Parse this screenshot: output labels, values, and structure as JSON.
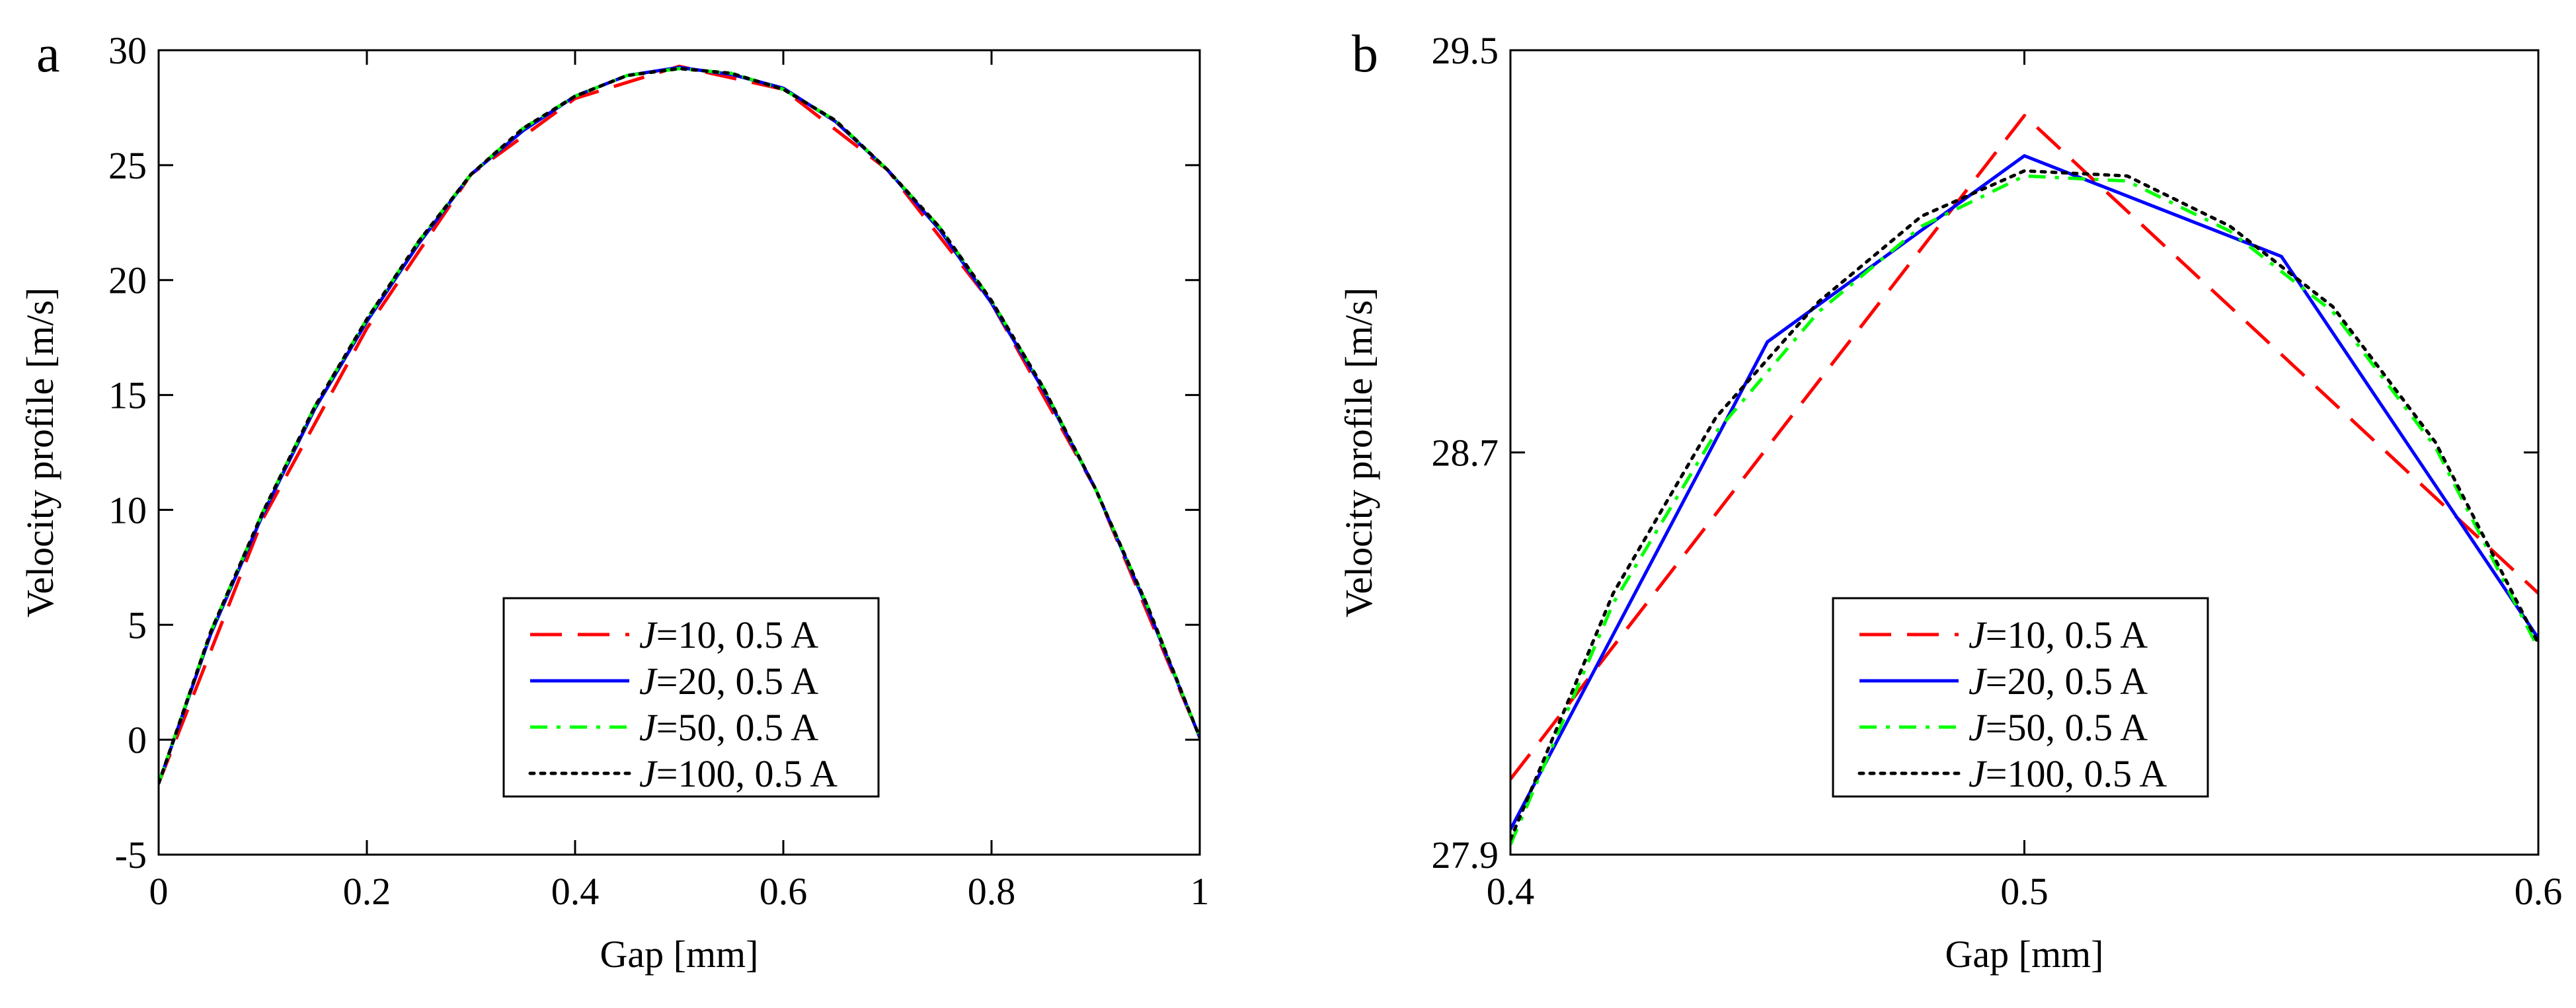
{
  "chart_data": [
    {
      "type": "line",
      "panel_label": "a",
      "xlabel": "Gap [mm]",
      "ylabel": "Velocity profile [m/s]",
      "xlim": [
        0,
        1
      ],
      "ylim": [
        -5,
        30
      ],
      "xticks": [
        0,
        0.2,
        0.4,
        0.6,
        0.8,
        1
      ],
      "xtick_labels": [
        "0",
        "0.2",
        "0.4",
        "0.6",
        "0.8",
        "1"
      ],
      "yticks": [
        -5,
        0,
        5,
        10,
        15,
        20,
        25,
        30
      ],
      "ytick_labels": [
        "-5",
        "0",
        "5",
        "10",
        "15",
        "20",
        "25",
        "30"
      ],
      "grid": false,
      "legend_position": "bottom-center",
      "series": [
        {
          "name": "J=10, 0.5 A",
          "legend_italic": "J",
          "legend_rest": "=10, 0.5 A",
          "color": "#ff0000",
          "dash": "dashed",
          "x": [
            0,
            0.1,
            0.2,
            0.3,
            0.4,
            0.5,
            0.6,
            0.7,
            0.8,
            0.9,
            1.0
          ],
          "y": [
            -1.9,
            9.6,
            17.9,
            24.6,
            27.9,
            29.3,
            28.3,
            24.8,
            19.0,
            10.9,
            0.1
          ]
        },
        {
          "name": "J=20, 0.5 A",
          "legend_italic": "J",
          "legend_rest": "=20, 0.5 A",
          "color": "#0000ff",
          "dash": "solid",
          "x": [
            0,
            0.05,
            0.1,
            0.15,
            0.2,
            0.25,
            0.3,
            0.35,
            0.4,
            0.45,
            0.5,
            0.55,
            0.6,
            0.65,
            0.7,
            0.75,
            0.8,
            0.85,
            0.9,
            0.95,
            1.0
          ],
          "y": [
            -1.9,
            4.6,
            9.8,
            14.4,
            18.2,
            21.6,
            24.6,
            26.5,
            28.0,
            28.9,
            29.25,
            28.95,
            28.35,
            26.9,
            24.8,
            22.2,
            19.0,
            15.2,
            10.9,
            5.7,
            0.1
          ]
        },
        {
          "name": "J=50, 0.5 A",
          "legend_italic": "J",
          "legend_rest": "=50, 0.5 A",
          "color": "#00ff00",
          "dash": "dashdot",
          "x": [
            0,
            0.05,
            0.1,
            0.15,
            0.2,
            0.25,
            0.3,
            0.35,
            0.4,
            0.45,
            0.5,
            0.55,
            0.6,
            0.65,
            0.7,
            0.75,
            0.8,
            0.85,
            0.9,
            0.95,
            1.0
          ],
          "y": [
            -1.9,
            4.7,
            9.9,
            14.5,
            18.3,
            21.7,
            24.6,
            26.6,
            28.0,
            28.9,
            29.2,
            29.0,
            28.3,
            26.95,
            24.8,
            22.3,
            19.1,
            15.3,
            10.9,
            5.8,
            0.1
          ]
        },
        {
          "name": "J=100, 0.5 A",
          "legend_italic": "J",
          "legend_rest": "=100, 0.5 A",
          "color": "#000000",
          "dash": "dotted",
          "x": [
            0,
            0.05,
            0.1,
            0.15,
            0.2,
            0.25,
            0.3,
            0.35,
            0.4,
            0.45,
            0.5,
            0.55,
            0.6,
            0.65,
            0.7,
            0.75,
            0.8,
            0.85,
            0.9,
            0.95,
            1.0
          ],
          "y": [
            -1.9,
            4.7,
            9.9,
            14.5,
            18.3,
            21.7,
            24.6,
            26.6,
            28.0,
            28.9,
            29.2,
            29.0,
            28.3,
            26.95,
            24.8,
            22.3,
            19.1,
            15.3,
            10.9,
            5.8,
            0.1
          ]
        }
      ]
    },
    {
      "type": "line",
      "panel_label": "b",
      "xlabel": "Gap [mm]",
      "ylabel": "Velocity profile [m/s]",
      "xlim": [
        0.4,
        0.6
      ],
      "ylim": [
        27.9,
        29.5
      ],
      "xticks": [
        0.4,
        0.5,
        0.6
      ],
      "xtick_labels": [
        "0.4",
        "0.5",
        "0.6"
      ],
      "yticks": [
        27.9,
        28.7,
        29.5
      ],
      "ytick_labels": [
        "27.9",
        "28.7",
        "29.5"
      ],
      "grid": false,
      "legend_position": "bottom-center",
      "series": [
        {
          "name": "J=10, 0.5 A",
          "legend_italic": "J",
          "legend_rest": "=10, 0.5 A",
          "color": "#ff0000",
          "dash": "dashed",
          "x": [
            0.4,
            0.5,
            0.6
          ],
          "y": [
            28.05,
            29.37,
            28.42
          ]
        },
        {
          "name": "J=20, 0.5 A",
          "legend_italic": "J",
          "legend_rest": "=20, 0.5 A",
          "color": "#0000ff",
          "dash": "solid",
          "x": [
            0.4,
            0.45,
            0.5,
            0.55,
            0.6
          ],
          "y": [
            27.95,
            28.92,
            29.29,
            29.09,
            28.33
          ]
        },
        {
          "name": "J=50, 0.5 A",
          "legend_italic": "J",
          "legend_rest": "=50, 0.5 A",
          "color": "#00ff00",
          "dash": "dashdot",
          "x": [
            0.4,
            0.42,
            0.44,
            0.46,
            0.48,
            0.5,
            0.52,
            0.54,
            0.56,
            0.58,
            0.6
          ],
          "y": [
            27.92,
            28.4,
            28.74,
            28.98,
            29.15,
            29.25,
            29.24,
            29.14,
            28.98,
            28.71,
            28.31
          ]
        },
        {
          "name": "J=100, 0.5 A",
          "legend_italic": "J",
          "legend_rest": "=100, 0.5 A",
          "color": "#000000",
          "dash": "dotted",
          "x": [
            0.4,
            0.42,
            0.44,
            0.46,
            0.48,
            0.5,
            0.52,
            0.54,
            0.56,
            0.58,
            0.6
          ],
          "y": [
            27.93,
            28.42,
            28.77,
            29.0,
            29.17,
            29.26,
            29.25,
            29.15,
            28.99,
            28.72,
            28.32
          ]
        }
      ]
    }
  ]
}
